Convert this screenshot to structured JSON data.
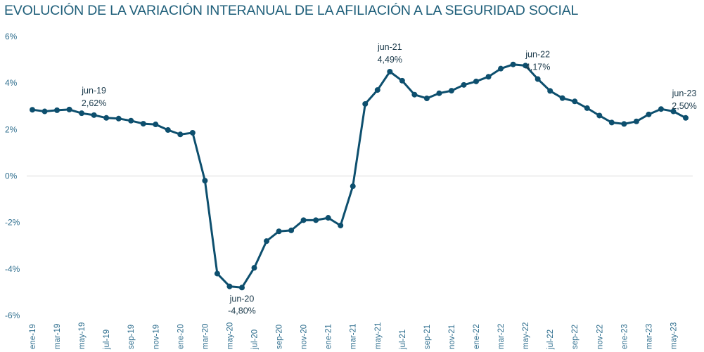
{
  "colors": {
    "line": "#0d4f6e",
    "title": "#1f5f7a",
    "axis_text": "#2e6e8e",
    "grid": "#d9d9d9"
  },
  "chart_data": {
    "type": "line",
    "title": "EVOLUCIÓN DE LA VARIACIÓN INTERANUAL DE LA AFILIACIÓN A LA SEGURIDAD SOCIAL",
    "xlabel": "",
    "ylabel": "",
    "ylim": [
      -6,
      6
    ],
    "yticks": [
      6,
      4,
      2,
      0,
      -2,
      -4,
      -6
    ],
    "ytick_labels": [
      "6%",
      "4%",
      "2%",
      "0%",
      "-2%",
      "-4%",
      "-6%"
    ],
    "grid": "horizontal zero line only",
    "legend": "none",
    "x_labels": [
      "ene-19",
      "mar-19",
      "may-19",
      "jul-19",
      "sep-19",
      "nov-19",
      "ene-20",
      "mar-20",
      "may-20",
      "jul-20",
      "sep-20",
      "nov-20",
      "ene-21",
      "mar-21",
      "may-21",
      "jul-21",
      "sep-21",
      "nov-21",
      "ene-22",
      "mar-22",
      "may-22",
      "jul-22",
      "sep-22",
      "nov-22",
      "ene-23",
      "mar-23",
      "may-23"
    ],
    "months": [
      "ene-19",
      "feb-19",
      "mar-19",
      "abr-19",
      "may-19",
      "jun-19",
      "jul-19",
      "ago-19",
      "sep-19",
      "oct-19",
      "nov-19",
      "dic-19",
      "ene-20",
      "feb-20",
      "mar-20",
      "abr-20",
      "may-20",
      "jun-20",
      "jul-20",
      "ago-20",
      "sep-20",
      "oct-20",
      "nov-20",
      "dic-20",
      "ene-21",
      "feb-21",
      "mar-21",
      "abr-21",
      "may-21",
      "jun-21",
      "jul-21",
      "ago-21",
      "sep-21",
      "oct-21",
      "nov-21",
      "dic-21",
      "ene-22",
      "feb-22",
      "mar-22",
      "abr-22",
      "may-22",
      "jun-22",
      "jul-22",
      "ago-22",
      "sep-22",
      "oct-22",
      "nov-22",
      "dic-22",
      "ene-23",
      "feb-23",
      "mar-23",
      "abr-23",
      "may-23",
      "jun-23"
    ],
    "values": [
      2.85,
      2.78,
      2.83,
      2.86,
      2.7,
      2.62,
      2.5,
      2.47,
      2.38,
      2.25,
      2.22,
      1.98,
      1.79,
      1.86,
      -0.2,
      -4.2,
      -4.75,
      -4.8,
      -3.95,
      -2.8,
      -2.38,
      -2.34,
      -1.9,
      -1.9,
      -1.8,
      -2.13,
      -0.44,
      3.1,
      3.7,
      4.49,
      4.1,
      3.5,
      3.34,
      3.56,
      3.67,
      3.92,
      4.07,
      4.27,
      4.62,
      4.8,
      4.75,
      4.17,
      3.66,
      3.35,
      3.21,
      2.92,
      2.6,
      2.3,
      2.24,
      2.35,
      2.65,
      2.88,
      2.78,
      2.5
    ],
    "annotations": [
      {
        "index": 5,
        "label": "jun-19",
        "value": "2,62%",
        "place": "above"
      },
      {
        "index": 17,
        "label": "jun-20",
        "value": "-4,80%",
        "place": "below"
      },
      {
        "index": 29,
        "label": "jun-21",
        "value": "4,49%",
        "place": "above"
      },
      {
        "index": 41,
        "label": "jun-22",
        "value": "4,17%",
        "place": "above"
      },
      {
        "index": 53,
        "label": "jun-23",
        "value": "2,50%",
        "place": "above"
      }
    ]
  }
}
